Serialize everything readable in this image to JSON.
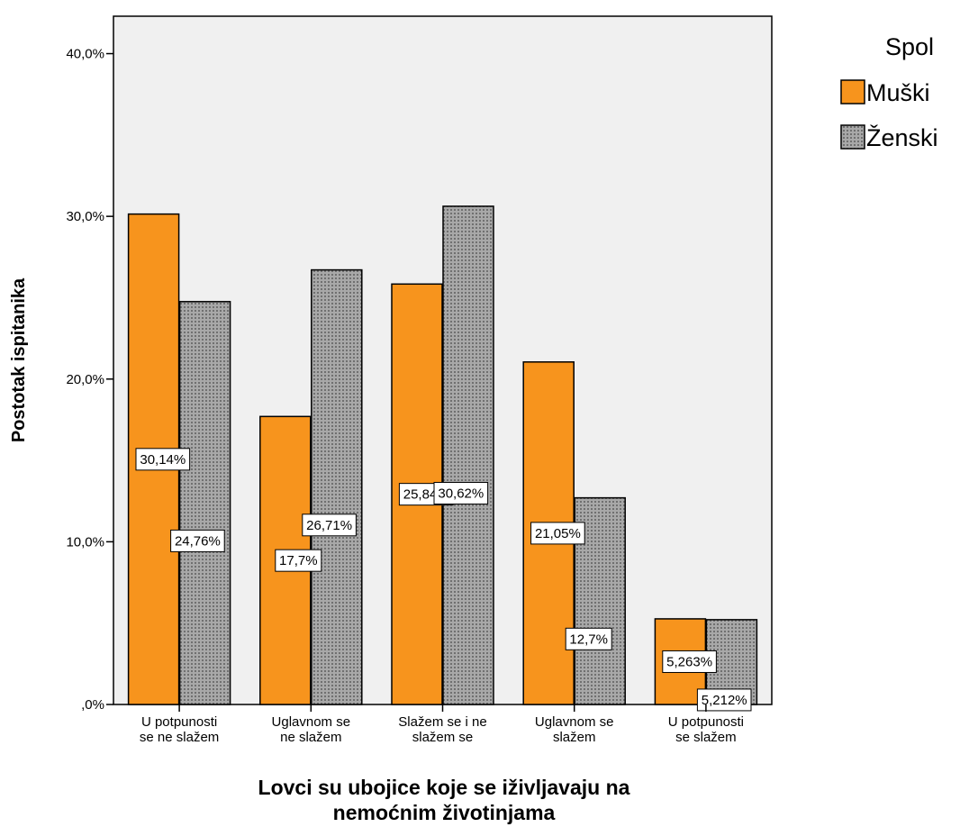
{
  "chart_data": {
    "type": "bar",
    "categories": [
      [
        "U potpunosti",
        "se ne slažem"
      ],
      [
        "Uglavnom se",
        "ne slažem"
      ],
      [
        "Slažem se i ne",
        "slažem se"
      ],
      [
        "Uglavnom se",
        "slažem"
      ],
      [
        "U potpunosti",
        "se slažem"
      ]
    ],
    "series": [
      {
        "name": "Muški",
        "values": [
          30.14,
          17.7,
          25.84,
          21.05,
          5.263
        ],
        "labels": [
          "30,14%",
          "17,7%",
          "25,84%",
          "21,05%",
          "5,263%"
        ],
        "color": "#f7941d",
        "pattern": "solid"
      },
      {
        "name": "Ženski",
        "values": [
          24.76,
          26.71,
          30.62,
          12.7,
          5.212
        ],
        "labels": [
          "24,76%",
          "26,71%",
          "30,62%",
          "12,7%",
          "5,212%"
        ],
        "color": "#a0a0a0",
        "pattern": "dotted"
      }
    ],
    "yticks": [
      {
        "value": 0,
        "label": ",0%"
      },
      {
        "value": 10,
        "label": "10,0%"
      },
      {
        "value": 20,
        "label": "20,0%"
      },
      {
        "value": 30,
        "label": "30,0%"
      },
      {
        "value": 40,
        "label": "40,0%"
      }
    ],
    "ylim": [
      0,
      42.3
    ],
    "xlabel": [
      "Lovci su ubojice koje se iživljavaju na",
      "nemoćnim životinjama"
    ],
    "ylabel": "Postotak ispitanika",
    "legend_title": "Spol",
    "legend_position": "top-right",
    "plot_background": "#f0f0f0",
    "grid": false
  }
}
